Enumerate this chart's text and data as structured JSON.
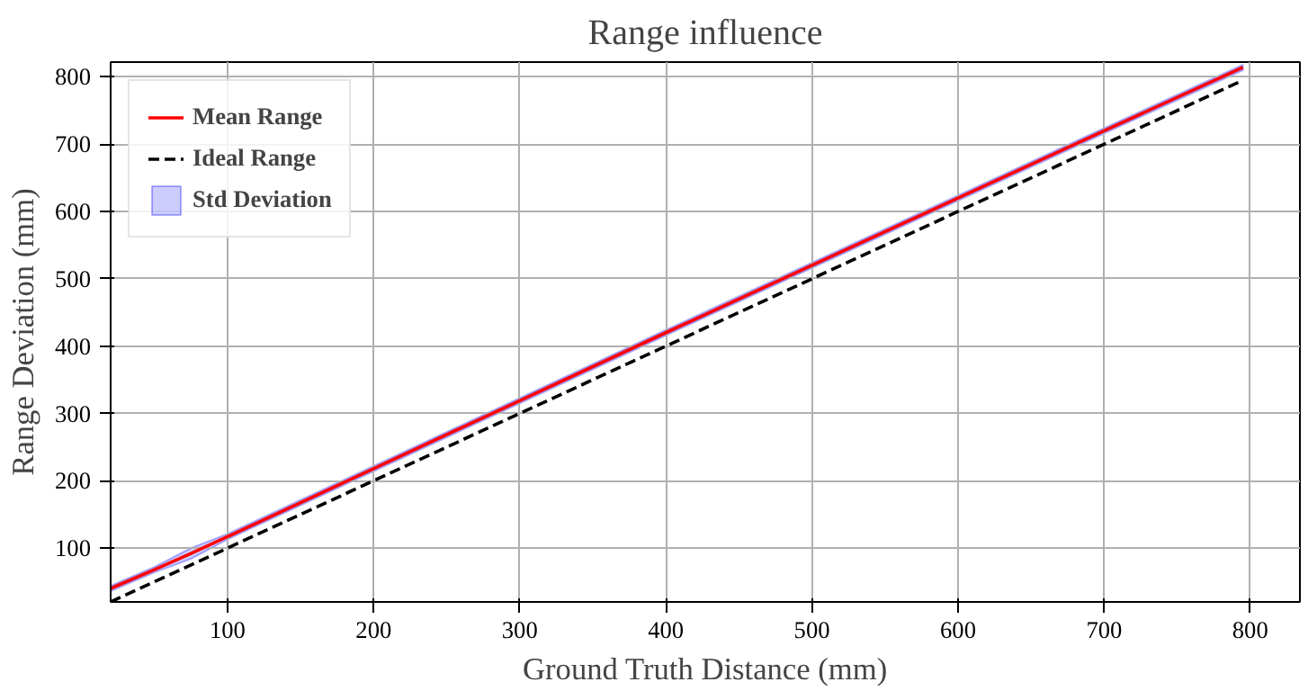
{
  "chart_data": {
    "type": "line",
    "title": "Range influence",
    "xlabel": "Ground Truth Distance (mm)",
    "ylabel": "Range Deviation (mm)",
    "xlim": [
      20,
      834
    ],
    "ylim": [
      20,
      822
    ],
    "xticks": [
      100,
      200,
      300,
      400,
      500,
      600,
      700,
      800
    ],
    "yticks": [
      100,
      200,
      300,
      400,
      500,
      600,
      700,
      800
    ],
    "grid": true,
    "legend": "top left",
    "series": [
      {
        "name": "Mean Range",
        "color": "#ff0000",
        "line_style": "solid",
        "x": [
          20,
          50,
          75,
          100,
          200,
          300,
          400,
          500,
          600,
          700,
          795
        ],
        "values": [
          40,
          68,
          92,
          117,
          218,
          319,
          420,
          520,
          620,
          720,
          814
        ],
        "lower": [
          36,
          64,
          84,
          113,
          214,
          315,
          416,
          516,
          616,
          716,
          810
        ],
        "upper": [
          44,
          72,
          100,
          121,
          222,
          323,
          424,
          524,
          624,
          724,
          818
        ]
      },
      {
        "name": "Ideal Range",
        "color": "#000000",
        "line_style": "dashed",
        "x": [
          20,
          795
        ],
        "values": [
          20,
          795
        ]
      },
      {
        "name": "Std Deviation",
        "type": "area",
        "color": "#0000ff"
      }
    ]
  }
}
